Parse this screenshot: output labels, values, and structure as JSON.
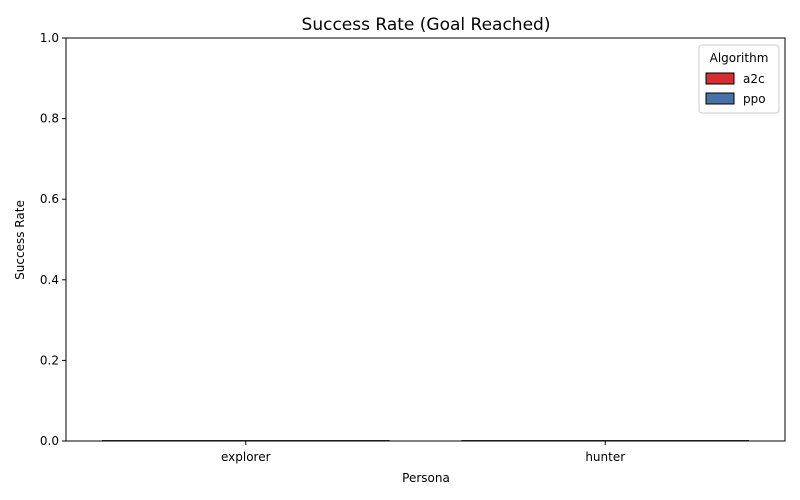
{
  "chart_data": {
    "type": "bar",
    "title": "Success Rate (Goal Reached)",
    "xlabel": "Persona",
    "ylabel": "Success Rate",
    "categories": [
      "explorer",
      "hunter"
    ],
    "series": [
      {
        "name": "a2c",
        "color": "#d62f2f",
        "values": [
          0.0,
          0.0
        ]
      },
      {
        "name": "ppo",
        "color": "#4573a8",
        "values": [
          0.0,
          0.0
        ]
      }
    ],
    "ylim": [
      0,
      1
    ],
    "yticks": [
      0.0,
      0.2,
      0.4,
      0.6,
      0.8,
      1.0
    ],
    "ytick_labels": [
      "0.0",
      "0.2",
      "0.4",
      "0.6",
      "0.8",
      "1.0"
    ],
    "grid": false,
    "legend": {
      "title": "Algorithm",
      "placement": "top-right"
    }
  }
}
